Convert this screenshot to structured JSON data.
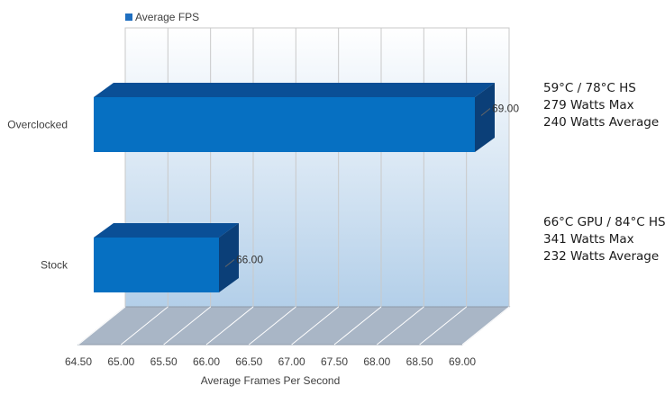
{
  "chart_data": {
    "type": "bar",
    "orientation": "horizontal",
    "style": "3d",
    "categories": [
      "Overclocked",
      "Stock"
    ],
    "series": [
      {
        "name": "Average FPS",
        "values": [
          69.0,
          66.0
        ],
        "value_labels": [
          "69.00",
          "66.00"
        ],
        "color": "#1f6fc0"
      }
    ],
    "xlabel": "Average Frames Per Second",
    "ylabel": "",
    "xlim": [
      64.5,
      69.0
    ],
    "x_ticks": [
      "64.50",
      "65.00",
      "65.50",
      "66.00",
      "66.50",
      "67.00",
      "67.50",
      "68.00",
      "68.50",
      "69.00"
    ],
    "grid": true,
    "legend": "top-left"
  },
  "annotations": {
    "overclocked": [
      "59°C / 78°C HS",
      "279 Watts Max",
      "240 Watts Average"
    ],
    "stock": [
      "66°C GPU / 84°C HS",
      "341 Watts Max",
      "232 Watts Average"
    ]
  },
  "colors": {
    "bar_front": "#0670c2",
    "bar_top": "#0a4f96",
    "bar_side": "#0b3f78",
    "floor": "#a9b6c6",
    "wall_top": "#ffffff",
    "wall_bottom": "#b3cfe9"
  }
}
